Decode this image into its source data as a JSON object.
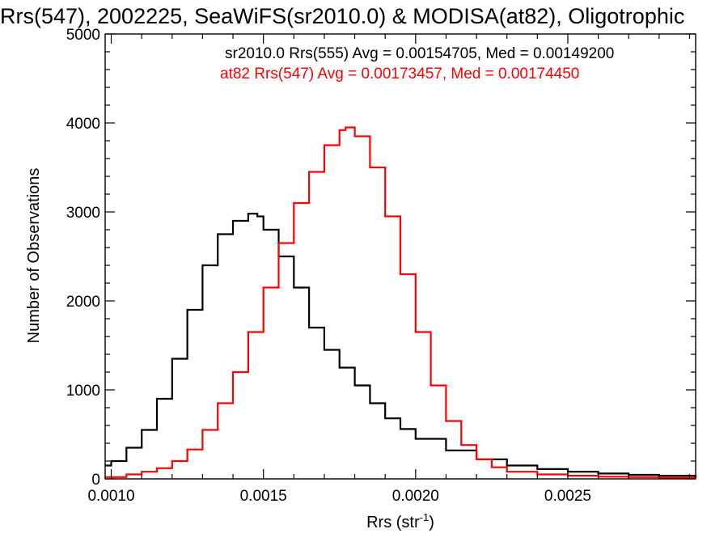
{
  "chart_data": {
    "type": "line",
    "title": "Rrs(547), 2002225, SeaWiFS(sr2010.0) & MODISA(at82), Oligotrophic",
    "xlabel": "Rrs (str",
    "xlabel_superscript": "-1",
    "xlabel_suffix": ")",
    "ylabel": "Number of Observations",
    "xlim": [
      0.00098,
      0.00292
    ],
    "ylim": [
      0,
      5000
    ],
    "x_ticks": [
      "0.0010",
      "0.0015",
      "0.0020",
      "0.0025"
    ],
    "x_tick_values": [
      0.001,
      0.0015,
      0.002,
      0.0025
    ],
    "y_ticks": [
      "0",
      "1000",
      "2000",
      "3000",
      "4000",
      "5000"
    ],
    "y_tick_values": [
      0,
      1000,
      2000,
      3000,
      4000,
      5000
    ],
    "grid": false,
    "legend_position": "top",
    "series": [
      {
        "name": "sr2010.0 Rrs(555) Avg = 0.00154705, Med = 0.00149200",
        "color": "#000000",
        "style": "step",
        "x": [
          0.00098,
          0.001,
          0.00105,
          0.0011,
          0.00115,
          0.0012,
          0.00125,
          0.0013,
          0.00135,
          0.0014,
          0.00145,
          0.00148,
          0.0015,
          0.00155,
          0.0016,
          0.00165,
          0.0017,
          0.00175,
          0.0018,
          0.00185,
          0.0019,
          0.00195,
          0.002,
          0.0021,
          0.0022,
          0.0023,
          0.0024,
          0.0025,
          0.0026,
          0.0027,
          0.0028,
          0.00292
        ],
        "y": [
          150,
          200,
          350,
          550,
          900,
          1350,
          1900,
          2400,
          2750,
          2900,
          2980,
          2950,
          2800,
          2500,
          2150,
          1700,
          1450,
          1250,
          1050,
          850,
          680,
          560,
          450,
          320,
          220,
          150,
          110,
          80,
          60,
          45,
          35,
          25
        ]
      },
      {
        "name": "at82 Rrs(547) Avg = 0.00173457, Med = 0.00174450",
        "color": "#ff0000",
        "style": "step",
        "x": [
          0.00098,
          0.00105,
          0.0011,
          0.00115,
          0.0012,
          0.00125,
          0.0013,
          0.00135,
          0.0014,
          0.00145,
          0.0015,
          0.00155,
          0.0016,
          0.00165,
          0.0017,
          0.00175,
          0.00177,
          0.0018,
          0.00185,
          0.0019,
          0.00195,
          0.002,
          0.00205,
          0.0021,
          0.00215,
          0.0022,
          0.00225,
          0.0023,
          0.0024,
          0.0025,
          0.0026,
          0.0027,
          0.0028,
          0.00292
        ],
        "y": [
          20,
          50,
          80,
          120,
          200,
          330,
          550,
          850,
          1200,
          1650,
          2150,
          2650,
          3100,
          3450,
          3750,
          3920,
          3950,
          3850,
          3500,
          2950,
          2300,
          1650,
          1050,
          650,
          380,
          220,
          130,
          80,
          50,
          35,
          25,
          20,
          15,
          10
        ]
      }
    ]
  }
}
